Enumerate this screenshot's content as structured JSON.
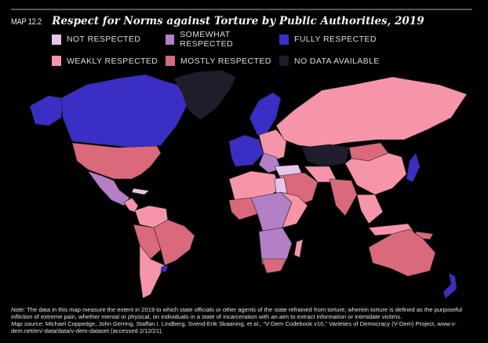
{
  "header": {
    "map_number": "MAP 12.2",
    "title": "Respect for Norms against Torture by Public Authorities, 2019"
  },
  "legend": [
    {
      "label": "NOT RESPECTED",
      "color": "#e5c6e8"
    },
    {
      "label": "SOMEWHAT RESPECTED",
      "color": "#b57fc7"
    },
    {
      "label": "FULLY RESPECTED",
      "color": "#3a2ec4"
    },
    {
      "label": "WEAKLY RESPECTED",
      "color": "#f695aa"
    },
    {
      "label": "MOSTLY RESPECTED",
      "color": "#d9697b"
    },
    {
      "label": "NO DATA AVAILABLE",
      "color": "#1f1d2b"
    }
  ],
  "footer": {
    "note_label": "Note:",
    "note_text": " The data in this map measure the extent in 2019 to which state officials or other agents of the state refrained from torture, wherein torture is defined as the purposeful infliction of extreme pain, whether mental or physical, on individuals in a state of incarceration with an aim to extract information or intimidate victims.",
    "source_label": "Map source:",
    "source_text": " Michael Coppedge, John Gerring, Staffan I. Lindberg, Svend-Erik Skaaning, et al., “V-Dem Codebook v10,” Varieties of Democracy (V-Dem) Project, www.v-dem.net/en/-data/data/v-dem-dataset (accessed 2/12/21)."
  }
}
